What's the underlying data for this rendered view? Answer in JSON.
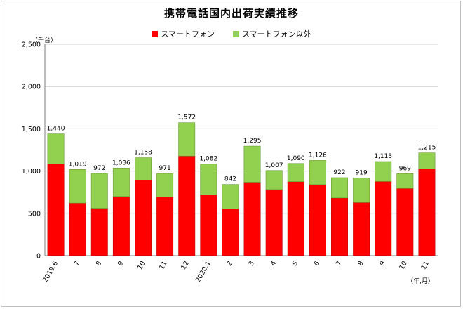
{
  "chart_data": {
    "type": "bar",
    "stacked": true,
    "title": "携帯電話国内出荷実績推移",
    "ylabel": "（千台）",
    "xlabel": "（年,月）",
    "ylim": [
      0,
      2500
    ],
    "yticks": [
      "0",
      "500",
      "1,000",
      "1,500",
      "2,000",
      "2,500"
    ],
    "ytick_values": [
      0,
      500,
      1000,
      1500,
      2000,
      2500
    ],
    "grid": true,
    "legend_position": "top",
    "categories": [
      "2019.6",
      "7",
      "8",
      "9",
      "10",
      "11",
      "12",
      "2020.1",
      "2",
      "3",
      "4",
      "5",
      "6",
      "7",
      "8",
      "9",
      "10",
      "11"
    ],
    "series": [
      {
        "name": "スマートフォン",
        "color": "#ff0000",
        "values": [
          1085,
          622,
          560,
          700,
          893,
          695,
          1178,
          720,
          553,
          868,
          782,
          875,
          840,
          682,
          628,
          877,
          795,
          1025
        ]
      },
      {
        "name": "スマートフォン以外",
        "color": "#92d050",
        "values": [
          355,
          397,
          412,
          336,
          265,
          276,
          394,
          362,
          289,
          427,
          225,
          215,
          286,
          240,
          291,
          236,
          174,
          190
        ]
      }
    ],
    "totals": [
      "1,440",
      "1,019",
      "972",
      "1,036",
      "1,158",
      "971",
      "1,572",
      "1,082",
      "842",
      "1,295",
      "1,007",
      "1,090",
      "1,126",
      "922",
      "919",
      "1,113",
      "969",
      "1,215"
    ],
    "total_values": [
      1440,
      1019,
      972,
      1036,
      1158,
      971,
      1572,
      1082,
      842,
      1295,
      1007,
      1090,
      1126,
      922,
      919,
      1113,
      969,
      1215
    ]
  }
}
